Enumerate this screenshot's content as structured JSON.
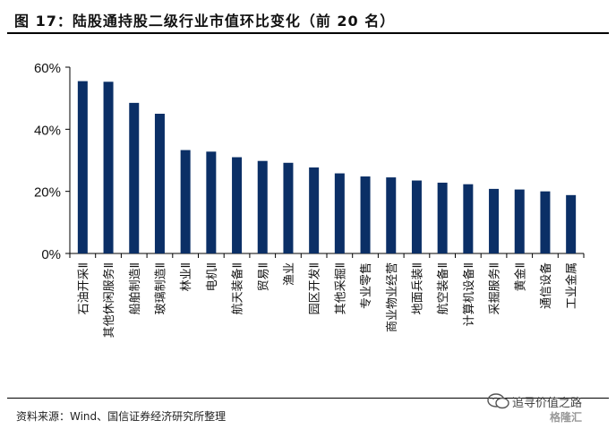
{
  "title": "图 17：陆股通持股二级行业市值环比变化（前 20 名）",
  "source": "资料来源：Wind、国信证券经济研究所整理",
  "watermark": {
    "text": "追寻价值之路",
    "logo": "格隆汇"
  },
  "colors": {
    "bar": "#0b2f66",
    "axis": "#000000"
  },
  "chart_data": {
    "type": "bar",
    "title": "",
    "xlabel": "",
    "ylabel": "",
    "ylim": [
      0,
      60
    ],
    "yticks": [
      "0%",
      "20%",
      "40%",
      "60%"
    ],
    "yunit": "%",
    "grid": false,
    "categories": [
      "石油开采Ⅱ",
      "其他休闲服务Ⅱ",
      "船舶制造Ⅱ",
      "玻璃制造Ⅱ",
      "林业Ⅱ",
      "电机Ⅱ",
      "航天装备Ⅱ",
      "贸易Ⅱ",
      "渔业",
      "园区开发Ⅱ",
      "其他采掘Ⅱ",
      "专业零售",
      "商业物业经营",
      "地面兵装Ⅱ",
      "航空装备Ⅱ",
      "计算机设备Ⅱ",
      "采掘服务Ⅱ",
      "黄金Ⅱ",
      "通信设备",
      "工业金属"
    ],
    "values": [
      55.5,
      55.3,
      48.5,
      45.0,
      33.3,
      32.8,
      31.0,
      29.8,
      29.2,
      27.7,
      25.8,
      24.8,
      24.5,
      23.5,
      22.8,
      22.3,
      20.8,
      20.6,
      20.0,
      18.8
    ]
  }
}
